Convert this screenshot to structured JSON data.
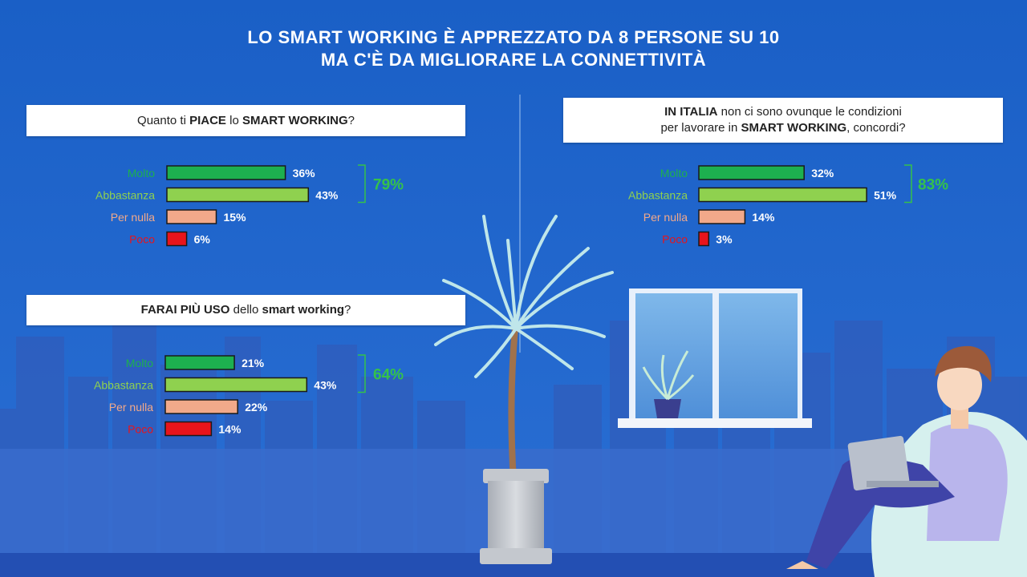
{
  "title": {
    "line1": "LO SMART WORKING È APPREZZATO DA 8 PERSONE SU 10",
    "line2": "MA C'È DA MIGLIORARE LA CONNETTIVITÀ"
  },
  "colors": {
    "background": "#1e63c9",
    "molto": "#1db04f",
    "abbastanza": "#8fd14f",
    "per_nulla": "#f2a98a",
    "poco": "#e8141b",
    "total_text": "#35c24a"
  },
  "questions": {
    "q1": {
      "pre": "Quanto ti ",
      "b1": "PIACE",
      "mid": " lo ",
      "b2": "SMART WORKING",
      "post": "?"
    },
    "q2": {
      "b1": "IN ITALIA",
      "mid": " non ci sono ovunque le condizioni",
      "line2_pre": "per lavorare in ",
      "b2": "SMART WORKING",
      "post": ", concordi?"
    },
    "q3": {
      "b1": "FARAI PIÙ USO",
      "mid": " dello ",
      "b2": "smart working",
      "post": "?"
    }
  },
  "chart_data": [
    {
      "type": "bar",
      "orientation": "horizontal",
      "categories": [
        "Molto",
        "Abbastanza",
        "Per nulla",
        "Poco"
      ],
      "values": [
        36,
        43,
        15,
        6
      ],
      "value_labels": [
        "36%",
        "43%",
        "15%",
        "6%"
      ],
      "bracket_total": "79%",
      "bracket_covers": [
        "Molto",
        "Abbastanza"
      ]
    },
    {
      "type": "bar",
      "orientation": "horizontal",
      "categories": [
        "Molto",
        "Abbastanza",
        "Per nulla",
        "Poco"
      ],
      "values": [
        32,
        51,
        14,
        3
      ],
      "value_labels": [
        "32%",
        "51%",
        "14%",
        "3%"
      ],
      "bracket_total": "83%",
      "bracket_covers": [
        "Molto",
        "Abbastanza"
      ]
    },
    {
      "type": "bar",
      "orientation": "horizontal",
      "categories": [
        "Molto",
        "Abbastanza",
        "Per nulla",
        "Poco"
      ],
      "values": [
        21,
        43,
        22,
        14
      ],
      "value_labels": [
        "21%",
        "43%",
        "22%",
        "14%"
      ],
      "bracket_total": "64%",
      "bracket_covers": [
        "Molto",
        "Abbastanza"
      ]
    }
  ]
}
